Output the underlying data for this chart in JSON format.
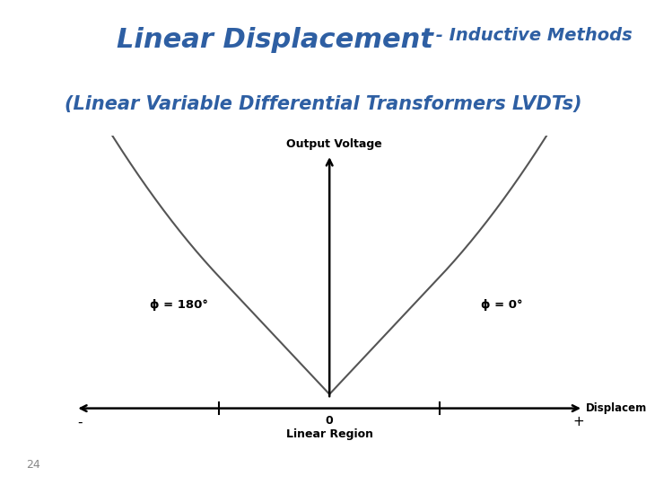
{
  "title_bold_part": "Linear Displacement",
  "title_small_part": " - Inductive Methods",
  "title_line2": "(Linear Variable Differential Transformers LVDTs)",
  "title_color": "#2E5FA3",
  "title_fontsize_large": 22,
  "title_fontsize_small": 14,
  "title_line2_fontsize": 15,
  "output_voltage_label": "Output Voltage",
  "displacement_label": "Displacement",
  "linear_region_label": "Linear Region",
  "zero_label": "0",
  "minus_label": "-",
  "plus_label": "+",
  "phi_left_label": "ϕ = 180°",
  "phi_right_label": "ϕ = 0°",
  "page_number": "24",
  "bg_color": "#ffffff",
  "curve_color": "#555555",
  "axis_color": "#000000",
  "text_color": "#000000"
}
